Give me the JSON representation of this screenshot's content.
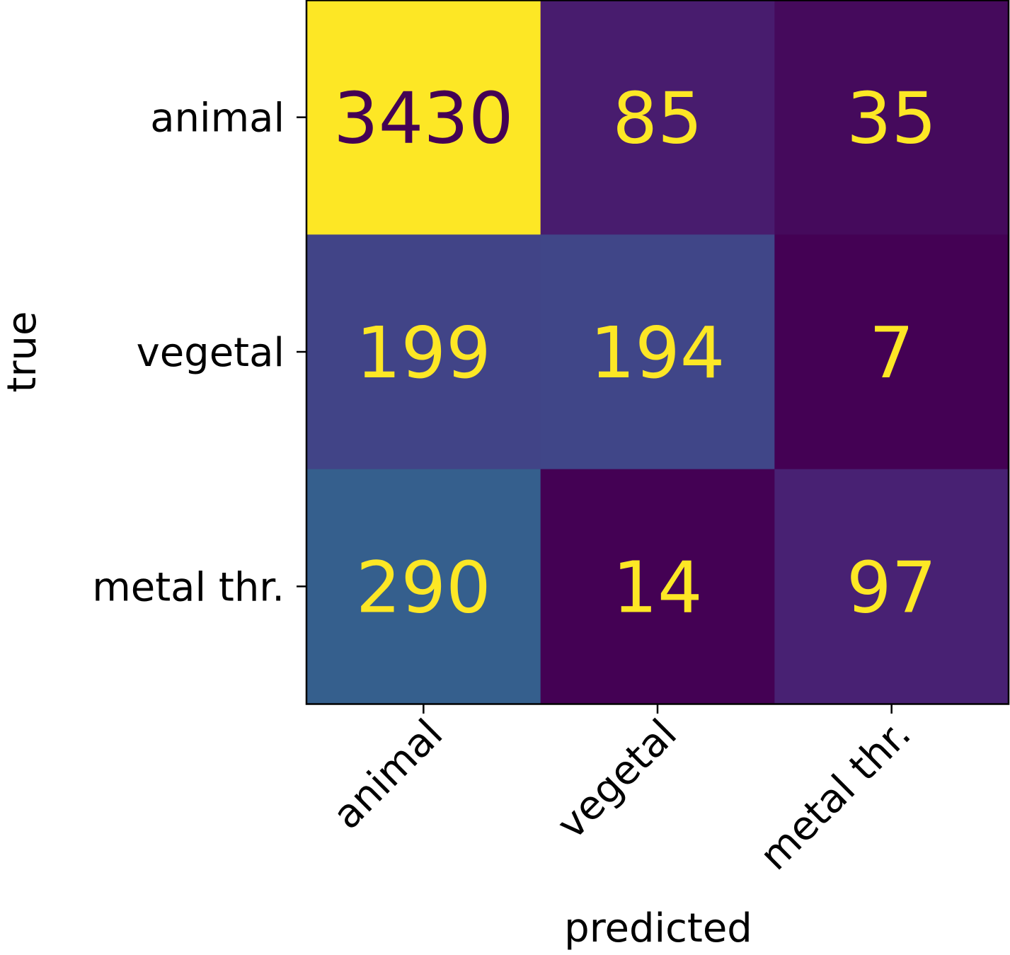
{
  "chart_data": {
    "type": "heatmap",
    "title": "",
    "xlabel": "predicted",
    "ylabel": "true",
    "x_categories": [
      "animal",
      "vegetal",
      "metal thr."
    ],
    "y_categories": [
      "animal",
      "vegetal",
      "metal thr."
    ],
    "values": [
      [
        3430,
        85,
        35
      ],
      [
        199,
        194,
        7
      ],
      [
        290,
        14,
        97
      ]
    ],
    "colormap": "viridis",
    "cell_colors": [
      [
        "#fde725",
        "#481c6e",
        "#450a5c"
      ],
      [
        "#414487",
        "#404688",
        "#440154"
      ],
      [
        "#355f8d",
        "#440154",
        "#482173"
      ]
    ],
    "text_colors": {
      "on_light": "#440154",
      "on_dark": "#fde725"
    },
    "grid": false,
    "legend": "none"
  }
}
